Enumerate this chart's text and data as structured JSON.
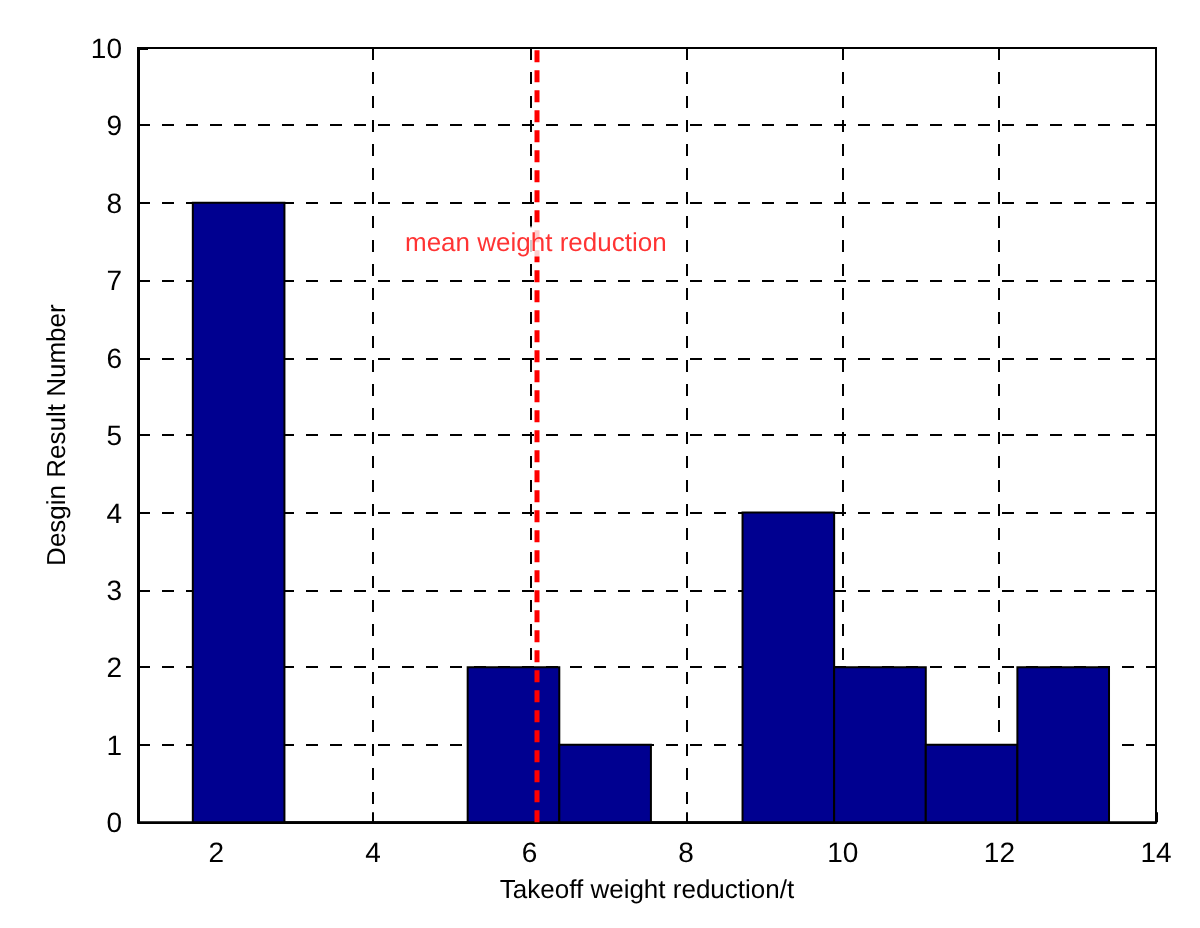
{
  "chart_data": {
    "type": "histogram",
    "xlabel": "Takeoff weight reduction/t",
    "ylabel": "Desgin Result Number",
    "bins": [
      1.7,
      2.87,
      4.04,
      5.21,
      6.38,
      7.55,
      8.72,
      9.89,
      11.06,
      12.23,
      13.4
    ],
    "values": [
      8,
      0,
      0,
      2,
      1,
      0,
      4,
      2,
      1,
      2
    ],
    "color": "#000090",
    "xlim": [
      1,
      14
    ],
    "xticks": [
      2,
      4,
      6,
      8,
      10,
      12,
      14
    ],
    "ylim": [
      0,
      10
    ],
    "yticks": [
      0,
      1,
      2,
      3,
      4,
      5,
      6,
      7,
      8,
      9,
      10
    ],
    "grid": true,
    "ref_lines": [
      {
        "axis": "x",
        "value": 6.08,
        "label": "mean weight reduction",
        "color": "#ff0000",
        "line_style": "dashed"
      }
    ]
  }
}
